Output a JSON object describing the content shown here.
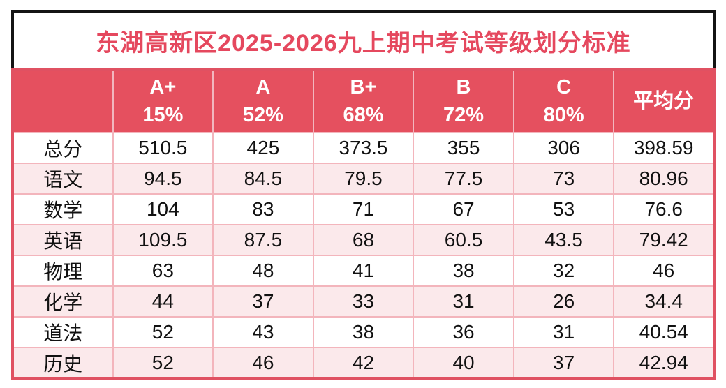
{
  "title": "东湖高新区2025-2026九上期中考试等级划分标准",
  "colors": {
    "title_red": "#E5485E",
    "title_border": "#141414",
    "header_bg": "#E5505F",
    "header_divider": "#F2B6BE",
    "outer_red": "#E05162",
    "grid_pink": "#F3B5BC",
    "row_pink": "#FBE9EB"
  },
  "table": {
    "corner_label": "",
    "columns": [
      {
        "grade": "A+",
        "percent": "15%"
      },
      {
        "grade": "A",
        "percent": "52%"
      },
      {
        "grade": "B+",
        "percent": "68%"
      },
      {
        "grade": "B",
        "percent": "72%"
      },
      {
        "grade": "C",
        "percent": "80%"
      },
      {
        "grade": "平均分",
        "percent": ""
      }
    ],
    "rows": [
      {
        "subject": "总分",
        "values": [
          "510.5",
          "425",
          "373.5",
          "355",
          "306",
          "398.59"
        ]
      },
      {
        "subject": "语文",
        "values": [
          "94.5",
          "84.5",
          "79.5",
          "77.5",
          "73",
          "80.96"
        ]
      },
      {
        "subject": "数学",
        "values": [
          "104",
          "83",
          "71",
          "67",
          "53",
          "76.6"
        ]
      },
      {
        "subject": "英语",
        "values": [
          "109.5",
          "87.5",
          "68",
          "60.5",
          "43.5",
          "79.42"
        ]
      },
      {
        "subject": "物理",
        "values": [
          "63",
          "48",
          "41",
          "38",
          "32",
          "46"
        ]
      },
      {
        "subject": "化学",
        "values": [
          "44",
          "37",
          "33",
          "31",
          "26",
          "34.4"
        ]
      },
      {
        "subject": "道法",
        "values": [
          "52",
          "43",
          "38",
          "36",
          "31",
          "40.54"
        ]
      },
      {
        "subject": "历史",
        "values": [
          "52",
          "46",
          "42",
          "40",
          "37",
          "42.94"
        ]
      }
    ]
  },
  "chart_data": {
    "type": "table",
    "title": "东湖高新区2025-2026九上期中考试等级划分标准",
    "column_headers": [
      "",
      "A+ 15%",
      "A 52%",
      "B+ 68%",
      "B 72%",
      "C 80%",
      "平均分"
    ],
    "rows": [
      [
        "总分",
        510.5,
        425,
        373.5,
        355,
        306,
        398.59
      ],
      [
        "语文",
        94.5,
        84.5,
        79.5,
        77.5,
        73,
        80.96
      ],
      [
        "数学",
        104,
        83,
        71,
        67,
        53,
        76.6
      ],
      [
        "英语",
        109.5,
        87.5,
        68,
        60.5,
        43.5,
        79.42
      ],
      [
        "物理",
        63,
        48,
        41,
        38,
        32,
        46
      ],
      [
        "化学",
        44,
        37,
        33,
        31,
        26,
        34.4
      ],
      [
        "道法",
        52,
        43,
        38,
        36,
        31,
        40.54
      ],
      [
        "历史",
        52,
        46,
        42,
        40,
        37,
        42.94
      ]
    ]
  }
}
